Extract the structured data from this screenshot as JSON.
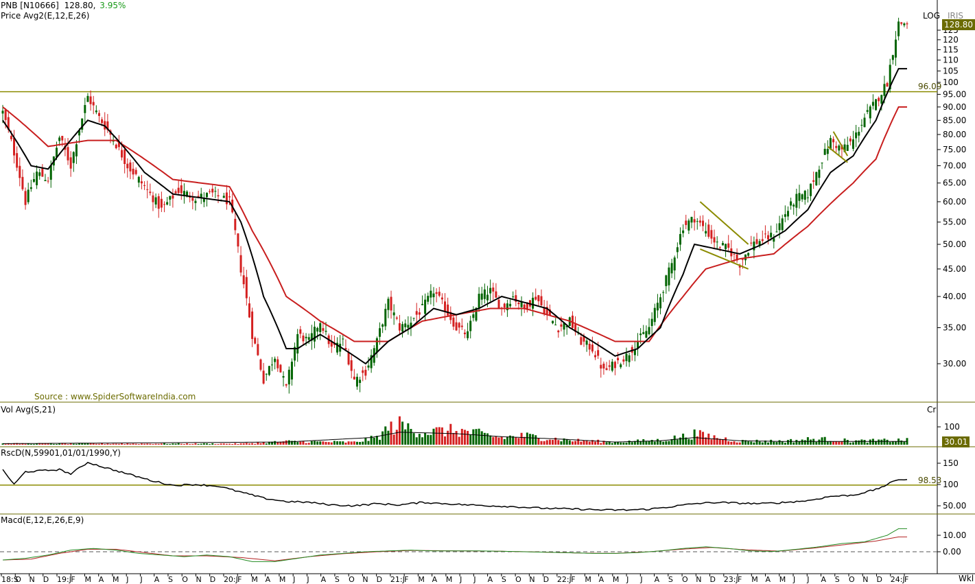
{
  "header": {
    "symbol": "PNB [N10666]",
    "last": "128.80,",
    "change": "3.95%",
    "price_study": "Price  Avg2(E,12,E,26)",
    "scale_mode": "LOG",
    "scale_mode2": "IRIS",
    "source": "Source : www.SpiderSoftwareIndia.com",
    "price_tag": "128.80",
    "level_label": "96.09",
    "vol_study": "Vol  Avg(S,21)",
    "vol_unit": "Cr",
    "vol_tag": "30.01",
    "rsc_study": "RscD(N,59901,01/01/1990,Y)",
    "rsc_level": "98.53",
    "macd_study": "Macd(E,12,E,26,E,9)",
    "period": "Wkl"
  },
  "colors": {
    "up": "#006400",
    "down": "#d42020",
    "ema_fast": "#000000",
    "ema_slow": "#c81e1e",
    "level": "#8b8b00",
    "pattern": "#8b8b00",
    "macd": "#228b22",
    "signal": "#b22222"
  },
  "chart_data": [
    {
      "type": "candlestick",
      "title": "PNB [N10666]",
      "scale": "log",
      "y_ticks": [
        30,
        35,
        40,
        45,
        50,
        55,
        60,
        65,
        70,
        75,
        80,
        85,
        90,
        95,
        100,
        105,
        110,
        115,
        120,
        125
      ],
      "y_tick_labels": [
        "30.00",
        "35.00",
        "40.00",
        "45.00",
        "50.00",
        "55.00",
        "60.00",
        "65.00",
        "70.00",
        "75.00",
        "80.00",
        "85.00",
        "90.00",
        "95.00",
        "100",
        "105",
        "110",
        "115",
        "120",
        "125"
      ],
      "horizontal_level": 96.09,
      "last_price": 128.8,
      "x_labels": [
        "18:S",
        "O",
        "N",
        "D",
        "19:J",
        "F",
        "M",
        "A",
        "M",
        "J",
        "J",
        "A",
        "S",
        "O",
        "N",
        "D",
        "20:J",
        "F",
        "M",
        "A",
        "M",
        "J",
        "J",
        "A",
        "S",
        "O",
        "N",
        "D",
        "21:J",
        "F",
        "M",
        "A",
        "M",
        "J",
        "J",
        "A",
        "S",
        "O",
        "N",
        "D",
        "22:J",
        "F",
        "M",
        "A",
        "M",
        "J",
        "J",
        "A",
        "S",
        "O",
        "N",
        "D",
        "23:J",
        "F",
        "M",
        "A",
        "M",
        "J",
        "J",
        "A",
        "S",
        "O",
        "N",
        "D",
        "24:J",
        "F"
      ],
      "close_anchors": [
        [
          0,
          88
        ],
        [
          4,
          74
        ],
        [
          8,
          60
        ],
        [
          12,
          68
        ],
        [
          16,
          66
        ],
        [
          20,
          79
        ],
        [
          24,
          70
        ],
        [
          30,
          94
        ],
        [
          34,
          86
        ],
        [
          38,
          80
        ],
        [
          44,
          70
        ],
        [
          50,
          64
        ],
        [
          56,
          58
        ],
        [
          62,
          63
        ],
        [
          68,
          61
        ],
        [
          74,
          62
        ],
        [
          80,
          60
        ],
        [
          84,
          45
        ],
        [
          88,
          34
        ],
        [
          92,
          28
        ],
        [
          96,
          31
        ],
        [
          100,
          27
        ],
        [
          104,
          34
        ],
        [
          108,
          33
        ],
        [
          112,
          36
        ],
        [
          116,
          32
        ],
        [
          120,
          33
        ],
        [
          124,
          28
        ],
        [
          128,
          29
        ],
        [
          132,
          33
        ],
        [
          136,
          39
        ],
        [
          140,
          35
        ],
        [
          144,
          36
        ],
        [
          148,
          38
        ],
        [
          152,
          41
        ],
        [
          156,
          38
        ],
        [
          160,
          35
        ],
        [
          164,
          34
        ],
        [
          168,
          40
        ],
        [
          172,
          41
        ],
        [
          176,
          38
        ],
        [
          180,
          40
        ],
        [
          184,
          38
        ],
        [
          188,
          40
        ],
        [
          192,
          37
        ],
        [
          196,
          35
        ],
        [
          200,
          36
        ],
        [
          204,
          33
        ],
        [
          208,
          32
        ],
        [
          212,
          29
        ],
        [
          216,
          30
        ],
        [
          220,
          31
        ],
        [
          224,
          33
        ],
        [
          228,
          35
        ],
        [
          232,
          40
        ],
        [
          236,
          46
        ],
        [
          240,
          54
        ],
        [
          244,
          56
        ],
        [
          248,
          53
        ],
        [
          252,
          50
        ],
        [
          256,
          49
        ],
        [
          260,
          46
        ],
        [
          264,
          50
        ],
        [
          268,
          51
        ],
        [
          272,
          52
        ],
        [
          276,
          57
        ],
        [
          280,
          61
        ],
        [
          284,
          62
        ],
        [
          288,
          70
        ],
        [
          292,
          78
        ],
        [
          296,
          75
        ],
        [
          300,
          78
        ],
        [
          304,
          86
        ],
        [
          308,
          92
        ],
        [
          312,
          100
        ],
        [
          316,
          128.8
        ]
      ],
      "ema_fast_anchors": [
        [
          0,
          85
        ],
        [
          10,
          70
        ],
        [
          16,
          69
        ],
        [
          30,
          85
        ],
        [
          36,
          83
        ],
        [
          50,
          68
        ],
        [
          60,
          62
        ],
        [
          80,
          60
        ],
        [
          84,
          55
        ],
        [
          92,
          40
        ],
        [
          100,
          32
        ],
        [
          104,
          32
        ],
        [
          112,
          34
        ],
        [
          120,
          32
        ],
        [
          128,
          30
        ],
        [
          136,
          33
        ],
        [
          144,
          35
        ],
        [
          152,
          38
        ],
        [
          160,
          37
        ],
        [
          168,
          38
        ],
        [
          176,
          40
        ],
        [
          184,
          39
        ],
        [
          192,
          38
        ],
        [
          200,
          35
        ],
        [
          208,
          33
        ],
        [
          216,
          31
        ],
        [
          224,
          32
        ],
        [
          232,
          35
        ],
        [
          240,
          44
        ],
        [
          244,
          50
        ],
        [
          252,
          49
        ],
        [
          260,
          48
        ],
        [
          268,
          50
        ],
        [
          276,
          53
        ],
        [
          284,
          58
        ],
        [
          292,
          68
        ],
        [
          300,
          73
        ],
        [
          308,
          85
        ],
        [
          316,
          106
        ]
      ],
      "ema_slow_anchors": [
        [
          0,
          90
        ],
        [
          16,
          76
        ],
        [
          30,
          78
        ],
        [
          40,
          78
        ],
        [
          60,
          66
        ],
        [
          80,
          64
        ],
        [
          88,
          53
        ],
        [
          100,
          40
        ],
        [
          112,
          36
        ],
        [
          124,
          33
        ],
        [
          136,
          33
        ],
        [
          148,
          36
        ],
        [
          160,
          37
        ],
        [
          172,
          38
        ],
        [
          184,
          38
        ],
        [
          200,
          36
        ],
        [
          216,
          33
        ],
        [
          228,
          33
        ],
        [
          240,
          40
        ],
        [
          248,
          45
        ],
        [
          260,
          47
        ],
        [
          272,
          48
        ],
        [
          284,
          54
        ],
        [
          300,
          65
        ],
        [
          308,
          72
        ],
        [
          316,
          90
        ]
      ],
      "patterns": [
        {
          "type": "flag",
          "upper": [
            [
              246,
              60
            ],
            [
              263,
              50
            ]
          ],
          "lower": [
            [
              246,
              49
            ],
            [
              263,
              45
            ]
          ]
        },
        {
          "type": "flag",
          "upper": [
            [
              293,
              81
            ],
            [
              298,
              73
            ]
          ],
          "lower": [
            [
              291,
              76
            ],
            [
              298,
              71
            ]
          ]
        }
      ]
    },
    {
      "type": "bar",
      "title": "Vol  Avg(S,21)",
      "y_ticks": [
        100
      ],
      "last_value": 30.01,
      "volume_anchors": [
        [
          0,
          6
        ],
        [
          84,
          6
        ],
        [
          100,
          18
        ],
        [
          124,
          14
        ],
        [
          132,
          40
        ],
        [
          136,
          90
        ],
        [
          140,
          110
        ],
        [
          148,
          70
        ],
        [
          160,
          80
        ],
        [
          168,
          60
        ],
        [
          176,
          40
        ],
        [
          184,
          50
        ],
        [
          200,
          25
        ],
        [
          216,
          15
        ],
        [
          232,
          25
        ],
        [
          240,
          45
        ],
        [
          244,
          60
        ],
        [
          252,
          40
        ],
        [
          260,
          20
        ],
        [
          276,
          20
        ],
        [
          284,
          30
        ],
        [
          292,
          30
        ],
        [
          300,
          20
        ],
        [
          316,
          25
        ]
      ],
      "avg_anchors": [
        [
          0,
          6
        ],
        [
          100,
          15
        ],
        [
          130,
          40
        ],
        [
          140,
          70
        ],
        [
          160,
          62
        ],
        [
          176,
          45
        ],
        [
          196,
          32
        ],
        [
          216,
          15
        ],
        [
          232,
          22
        ],
        [
          244,
          40
        ],
        [
          260,
          22
        ],
        [
          276,
          18
        ],
        [
          316,
          18
        ]
      ]
    },
    {
      "type": "line",
      "title": "RscD(N,59901,01/01/1990,Y)",
      "y_ticks": [
        50,
        100,
        150
      ],
      "y_tick_labels": [
        "50.00",
        "100",
        "150"
      ],
      "horizontal_level": 98.53,
      "values": [
        [
          0,
          135
        ],
        [
          4,
          100
        ],
        [
          8,
          130
        ],
        [
          20,
          135
        ],
        [
          24,
          125
        ],
        [
          30,
          152
        ],
        [
          36,
          140
        ],
        [
          44,
          125
        ],
        [
          52,
          110
        ],
        [
          60,
          98
        ],
        [
          68,
          100
        ],
        [
          76,
          96
        ],
        [
          84,
          82
        ],
        [
          92,
          68
        ],
        [
          100,
          60
        ],
        [
          108,
          58
        ],
        [
          116,
          52
        ],
        [
          124,
          50
        ],
        [
          132,
          55
        ],
        [
          140,
          52
        ],
        [
          148,
          58
        ],
        [
          156,
          55
        ],
        [
          164,
          52
        ],
        [
          172,
          50
        ],
        [
          180,
          48
        ],
        [
          188,
          45
        ],
        [
          196,
          43
        ],
        [
          204,
          42
        ],
        [
          212,
          40
        ],
        [
          220,
          40
        ],
        [
          228,
          42
        ],
        [
          236,
          48
        ],
        [
          244,
          55
        ],
        [
          252,
          58
        ],
        [
          260,
          56
        ],
        [
          268,
          55
        ],
        [
          276,
          58
        ],
        [
          284,
          62
        ],
        [
          292,
          72
        ],
        [
          300,
          75
        ],
        [
          308,
          88
        ],
        [
          316,
          112
        ]
      ]
    },
    {
      "type": "line",
      "title": "Macd(E,12,E,26,E,9)",
      "y_ticks": [
        0,
        10
      ],
      "y_tick_labels": [
        "0.00",
        "10.00"
      ],
      "macd": [
        [
          0,
          -5
        ],
        [
          8,
          -4
        ],
        [
          16,
          -2
        ],
        [
          24,
          1
        ],
        [
          32,
          2
        ],
        [
          40,
          1
        ],
        [
          48,
          -1
        ],
        [
          56,
          -2
        ],
        [
          64,
          -3
        ],
        [
          72,
          -2
        ],
        [
          80,
          -3
        ],
        [
          88,
          -6
        ],
        [
          96,
          -6
        ],
        [
          104,
          -4
        ],
        [
          112,
          -2
        ],
        [
          120,
          -1
        ],
        [
          128,
          0
        ],
        [
          136,
          0.5
        ],
        [
          144,
          1
        ],
        [
          152,
          0.5
        ],
        [
          160,
          0.5
        ],
        [
          168,
          0.5
        ],
        [
          176,
          0.3
        ],
        [
          184,
          0
        ],
        [
          192,
          -0.3
        ],
        [
          200,
          -0.6
        ],
        [
          208,
          -1
        ],
        [
          216,
          -1
        ],
        [
          224,
          -0.5
        ],
        [
          232,
          0.5
        ],
        [
          240,
          2
        ],
        [
          248,
          3
        ],
        [
          256,
          2
        ],
        [
          264,
          0.5
        ],
        [
          272,
          0.2
        ],
        [
          280,
          1.5
        ],
        [
          288,
          3
        ],
        [
          296,
          5
        ],
        [
          304,
          6
        ],
        [
          312,
          10
        ],
        [
          316,
          14
        ]
      ],
      "signal": [
        [
          0,
          -5
        ],
        [
          10,
          -4.5
        ],
        [
          20,
          -1
        ],
        [
          30,
          1.5
        ],
        [
          40,
          1.5
        ],
        [
          50,
          -0.5
        ],
        [
          60,
          -2.5
        ],
        [
          72,
          -2.5
        ],
        [
          84,
          -3.5
        ],
        [
          96,
          -5.5
        ],
        [
          108,
          -3
        ],
        [
          120,
          -1.2
        ],
        [
          132,
          0
        ],
        [
          144,
          0.8
        ],
        [
          156,
          0.6
        ],
        [
          172,
          0.4
        ],
        [
          188,
          -0.1
        ],
        [
          204,
          -0.8
        ],
        [
          216,
          -1
        ],
        [
          228,
          0
        ],
        [
          240,
          1.6
        ],
        [
          250,
          2.6
        ],
        [
          262,
          1.2
        ],
        [
          274,
          0.4
        ],
        [
          286,
          2.2
        ],
        [
          298,
          4.5
        ],
        [
          308,
          6.5
        ],
        [
          316,
          9
        ]
      ]
    }
  ]
}
